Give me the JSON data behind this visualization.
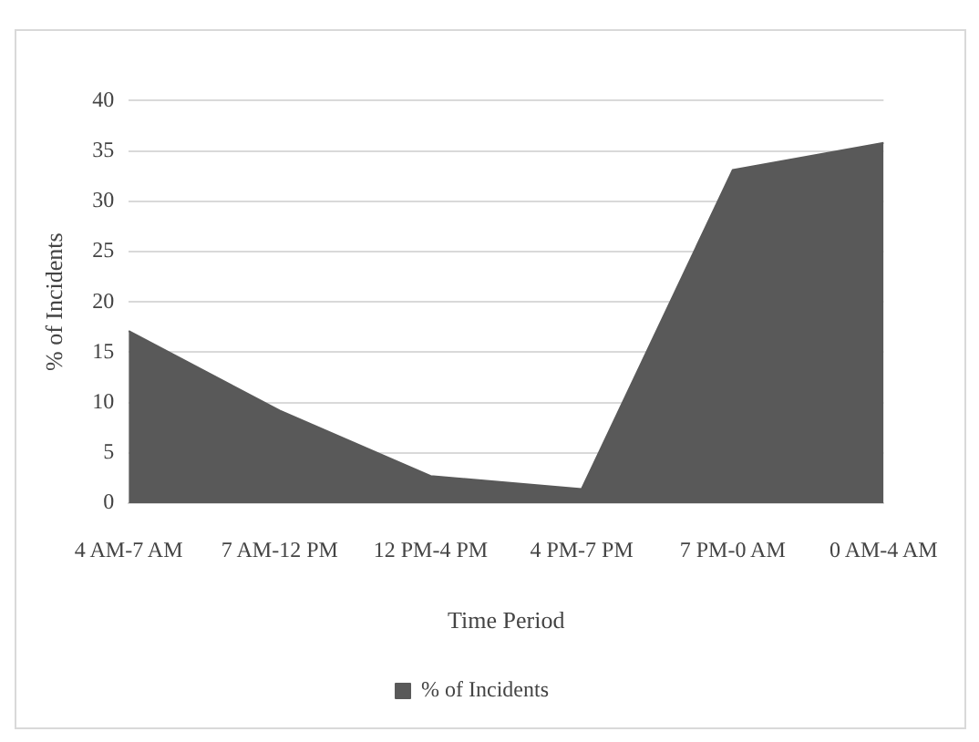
{
  "chart_data": {
    "type": "area",
    "xlabel": "Time Period",
    "ylabel": "% of Incidents",
    "categories": [
      "4 AM-7 AM",
      "7 AM-12 PM",
      "12 PM-4 PM",
      "4 PM-7 PM",
      "7 PM-0 AM",
      "0 AM-4 AM"
    ],
    "series": [
      {
        "name": "% of Incidents",
        "color": "#595959",
        "values": [
          17.1,
          9.2,
          2.7,
          1.4,
          33.1,
          35.8
        ]
      }
    ],
    "ylim": [
      0,
      40
    ],
    "yticks": [
      0,
      5,
      10,
      15,
      20,
      25,
      30,
      35,
      40
    ],
    "grid": "y",
    "legend": "bottom"
  }
}
